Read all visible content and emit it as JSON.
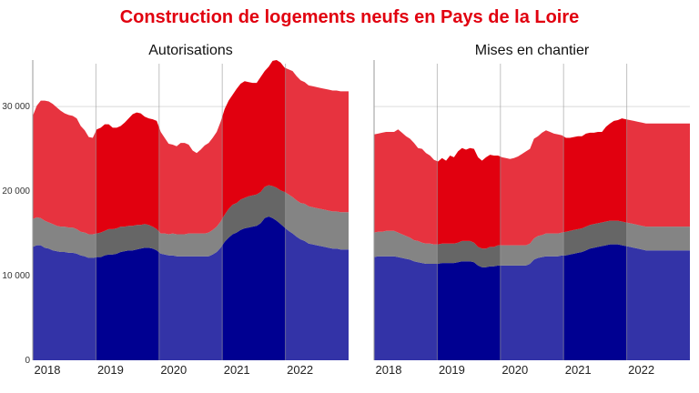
{
  "title": "Construction de logements neufs en Pays de la Loire",
  "colors": {
    "red": "#e1000f",
    "grey": "#666666",
    "blue": "#000091",
    "grid": "#d6d6d6",
    "axis": "#9a9a9a"
  },
  "chart_data": [
    {
      "type": "area",
      "subtitle": "Autorisations",
      "stacked": true,
      "x_labels": [
        "2018",
        "2019",
        "2020",
        "2021",
        "2022"
      ],
      "y_ticks": [
        "0",
        "10 000",
        "20 000",
        "30 000"
      ],
      "ylim": [
        0,
        35500
      ],
      "grid": true,
      "x": [
        0,
        0.25,
        0.5,
        0.75,
        1,
        1.25,
        1.5,
        1.75,
        2,
        2.25,
        2.5,
        2.75,
        3,
        3.25,
        3.5,
        3.75,
        4,
        4.25,
        4.5,
        4.75,
        5,
        5.25,
        5.5,
        5.75,
        6,
        6.25,
        6.5,
        6.75,
        7,
        7.25,
        7.5,
        7.75,
        8,
        8.25,
        8.5,
        8.75,
        9,
        9.25,
        9.5,
        9.75,
        10,
        10.25,
        10.5,
        10.75,
        11,
        11.25,
        11.5,
        11.75,
        12,
        12.25,
        12.5,
        12.75,
        13,
        13.25,
        13.5,
        13.75,
        14,
        14.25,
        14.5,
        14.75,
        15,
        15.25,
        15.5,
        15.75,
        16,
        16.25,
        16.5,
        16.75,
        17,
        17.25,
        17.5,
        17.75,
        18,
        18.25,
        18.5,
        18.75,
        19,
        19.25,
        19.5,
        19.75
      ],
      "series": [
        {
          "values": [
            13400,
            13600,
            13600,
            13300,
            13200,
            13000,
            12900,
            12800,
            12800,
            12700,
            12700,
            12600,
            12400,
            12300,
            12100,
            12100,
            12200,
            12200,
            12400,
            12500,
            12500,
            12600,
            12800,
            12900,
            13000,
            13000,
            13100,
            13200,
            13300,
            13300,
            13200,
            13000,
            12600,
            12500,
            12400,
            12400,
            12300,
            12300,
            12300,
            12300,
            12300,
            12300,
            12300,
            12300,
            12300,
            12500,
            12800,
            13300,
            14000,
            14500,
            14900,
            15100,
            15400,
            15600,
            15700,
            15800,
            15900,
            16200,
            16800,
            17000,
            16800,
            16500,
            16100,
            15700,
            15300,
            15000,
            14600,
            14300,
            14100,
            13800,
            13700,
            13600,
            13500,
            13400,
            13300,
            13200,
            13200,
            13100,
            13100,
            13100
          ]
        },
        {
          "values": [
            3300,
            3300,
            3200,
            3200,
            3100,
            3100,
            3000,
            3000,
            3000,
            3000,
            3000,
            2900,
            2800,
            2800,
            2800,
            2800,
            2800,
            2900,
            2900,
            3000,
            3000,
            3000,
            3000,
            2900,
            2900,
            2900,
            2900,
            2800,
            2800,
            2700,
            2600,
            2500,
            2400,
            2500,
            2500,
            2600,
            2600,
            2600,
            2600,
            2700,
            2700,
            2700,
            2700,
            2700,
            2800,
            2900,
            3000,
            3100,
            3200,
            3400,
            3500,
            3500,
            3600,
            3600,
            3700,
            3700,
            3700,
            3700,
            3700,
            3700,
            3800,
            3900,
            4000,
            4200,
            4300,
            4300,
            4300,
            4300,
            4400,
            4400,
            4400,
            4400,
            4400,
            4400,
            4400,
            4400,
            4400,
            4400,
            4400,
            4400
          ]
        },
        {
          "values": [
            12200,
            13200,
            13900,
            14200,
            14300,
            14200,
            14000,
            13700,
            13400,
            13300,
            13200,
            13100,
            12500,
            12100,
            11500,
            11400,
            12300,
            12400,
            12600,
            12400,
            12000,
            11900,
            11900,
            12300,
            12700,
            13200,
            13300,
            13200,
            12700,
            12600,
            12700,
            12800,
            12000,
            11300,
            10700,
            10500,
            10400,
            10800,
            10800,
            10500,
            9800,
            9500,
            9900,
            10400,
            10600,
            10900,
            11200,
            11800,
            12500,
            12800,
            13000,
            13500,
            13700,
            13800,
            13500,
            13300,
            13200,
            13600,
            13700,
            14000,
            14800,
            15100,
            15100,
            14700,
            14800,
            14900,
            14700,
            14500,
            14400,
            14300,
            14300,
            14300,
            14300,
            14300,
            14300,
            14300,
            14300,
            14300,
            14300,
            14300
          ]
        }
      ]
    },
    {
      "type": "area",
      "subtitle": "Mises en chantier",
      "stacked": true,
      "x_labels": [
        "2018",
        "2019",
        "2020",
        "2021",
        "2022"
      ],
      "y_ticks": [
        "0",
        "10 000",
        "20 000",
        "30 000"
      ],
      "ylim": [
        0,
        35500
      ],
      "grid": true,
      "x": [
        0,
        0.25,
        0.5,
        0.75,
        1,
        1.25,
        1.5,
        1.75,
        2,
        2.25,
        2.5,
        2.75,
        3,
        3.25,
        3.5,
        3.75,
        4,
        4.25,
        4.5,
        4.75,
        5,
        5.25,
        5.5,
        5.75,
        6,
        6.25,
        6.5,
        6.75,
        7,
        7.25,
        7.5,
        7.75,
        8,
        8.25,
        8.5,
        8.75,
        9,
        9.25,
        9.5,
        9.75,
        10,
        10.25,
        10.5,
        10.75,
        11,
        11.25,
        11.5,
        11.75,
        12,
        12.25,
        12.5,
        12.75,
        13,
        13.25,
        13.5,
        13.75,
        14,
        14.25,
        14.5,
        14.75,
        15,
        15.25,
        15.5,
        15.75,
        16,
        16.25,
        16.5,
        16.75,
        17,
        17.25,
        17.5,
        17.75,
        18,
        18.25,
        18.5,
        18.75,
        19,
        19.25,
        19.5,
        19.75
      ],
      "series": [
        {
          "values": [
            12200,
            12300,
            12300,
            12300,
            12300,
            12300,
            12200,
            12100,
            12000,
            11900,
            11700,
            11600,
            11500,
            11400,
            11400,
            11400,
            11400,
            11500,
            11500,
            11500,
            11500,
            11600,
            11700,
            11700,
            11700,
            11600,
            11200,
            11000,
            11000,
            11100,
            11100,
            11200,
            11200,
            11200,
            11200,
            11200,
            11200,
            11200,
            11200,
            11400,
            11900,
            12100,
            12200,
            12300,
            12300,
            12300,
            12300,
            12400,
            12400,
            12500,
            12600,
            12700,
            12800,
            13000,
            13200,
            13300,
            13400,
            13500,
            13600,
            13700,
            13700,
            13700,
            13600,
            13500,
            13400,
            13300,
            13200,
            13100,
            13000,
            13000,
            13000,
            13000,
            13000,
            13000,
            13000,
            13000,
            13000,
            13000,
            13000,
            13000
          ]
        },
        {
          "values": [
            2900,
            2900,
            2900,
            3000,
            3000,
            3000,
            2900,
            2800,
            2700,
            2600,
            2500,
            2500,
            2400,
            2400,
            2400,
            2300,
            2300,
            2300,
            2300,
            2300,
            2300,
            2300,
            2400,
            2400,
            2400,
            2300,
            2200,
            2200,
            2200,
            2300,
            2300,
            2400,
            2400,
            2400,
            2400,
            2400,
            2400,
            2400,
            2400,
            2400,
            2500,
            2600,
            2600,
            2700,
            2700,
            2700,
            2700,
            2700,
            2800,
            2800,
            2800,
            2800,
            2800,
            2800,
            2800,
            2800,
            2800,
            2800,
            2800,
            2800,
            2800,
            2800,
            2800,
            2800,
            2800,
            2800,
            2800,
            2800,
            2800,
            2800,
            2800,
            2800,
            2800,
            2800,
            2800,
            2800,
            2800,
            2800,
            2800,
            2800
          ]
        },
        {
          "values": [
            11600,
            11600,
            11700,
            11700,
            11700,
            11700,
            12200,
            12000,
            11800,
            11700,
            11500,
            11000,
            11100,
            10700,
            10400,
            10000,
            9800,
            10100,
            9800,
            10400,
            10200,
            10800,
            11000,
            10800,
            11000,
            11100,
            10600,
            10400,
            10800,
            10900,
            10800,
            10600,
            10400,
            10300,
            10200,
            10300,
            10500,
            10800,
            11100,
            11200,
            11800,
            11800,
            12100,
            12200,
            12000,
            11800,
            11700,
            11500,
            11100,
            11000,
            11000,
            11000,
            10900,
            11000,
            10900,
            10800,
            10800,
            10700,
            11200,
            11500,
            11800,
            11900,
            12200,
            12200,
            12200,
            12200,
            12200,
            12200,
            12200,
            12200,
            12200,
            12200,
            12200,
            12200,
            12200,
            12200,
            12200,
            12200,
            12200,
            12200
          ]
        }
      ]
    }
  ]
}
